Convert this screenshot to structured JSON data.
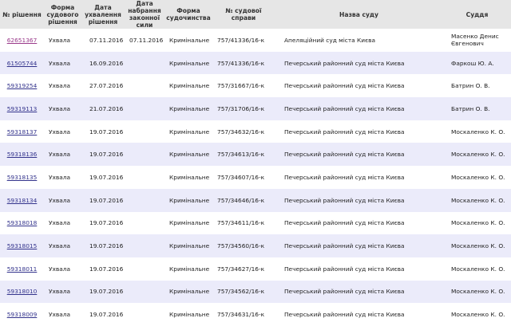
{
  "headers": [
    "№ рішення",
    "Форма судового рішення",
    "Дата ухвалення рішення",
    "Дата набрання законної сили",
    "Форма судочинства",
    "№ судової справи",
    "Назва суду",
    "Суддя"
  ],
  "rows": [
    {
      "id": "62651367",
      "form": "Ухвала",
      "date": "07.11.2016",
      "effective": "07.11.2016",
      "proc": "Кримінальне",
      "case": "757/41336/16-к",
      "court": "Апеляційний суд міста Києва",
      "judge": "Масенко Денис Євгенович",
      "visited": true
    },
    {
      "id": "61505744",
      "form": "Ухвала",
      "date": "16.09.2016",
      "effective": "",
      "proc": "Кримінальне",
      "case": "757/41336/16-к",
      "court": "Печерський районний суд міста Києва",
      "judge": "Фаркош Ю. А."
    },
    {
      "id": "59319254",
      "form": "Ухвала",
      "date": "27.07.2016",
      "effective": "",
      "proc": "Кримінальне",
      "case": "757/31667/16-к",
      "court": "Печерський районний суд міста Києва",
      "judge": "Батрин О. В."
    },
    {
      "id": "59319113",
      "form": "Ухвала",
      "date": "21.07.2016",
      "effective": "",
      "proc": "Кримінальне",
      "case": "757/31706/16-к",
      "court": "Печерський районний суд міста Києва",
      "judge": "Батрин О. В."
    },
    {
      "id": "59318137",
      "form": "Ухвала",
      "date": "19.07.2016",
      "effective": "",
      "proc": "Кримінальне",
      "case": "757/34632/16-к",
      "court": "Печерський районний суд міста Києва",
      "judge": "Москаленко К. О."
    },
    {
      "id": "59318136",
      "form": "Ухвала",
      "date": "19.07.2016",
      "effective": "",
      "proc": "Кримінальне",
      "case": "757/34613/16-к",
      "court": "Печерський районний суд міста Києва",
      "judge": "Москаленко К. О."
    },
    {
      "id": "59318135",
      "form": "Ухвала",
      "date": "19.07.2016",
      "effective": "",
      "proc": "Кримінальне",
      "case": "757/34607/16-к",
      "court": "Печерський районний суд міста Києва",
      "judge": "Москаленко К. О."
    },
    {
      "id": "59318134",
      "form": "Ухвала",
      "date": "19.07.2016",
      "effective": "",
      "proc": "Кримінальне",
      "case": "757/34646/16-к",
      "court": "Печерський районний суд міста Києва",
      "judge": "Москаленко К. О."
    },
    {
      "id": "59318018",
      "form": "Ухвала",
      "date": "19.07.2016",
      "effective": "",
      "proc": "Кримінальне",
      "case": "757/34611/16-к",
      "court": "Печерський районний суд міста Києва",
      "judge": "Москаленко К. О."
    },
    {
      "id": "59318015",
      "form": "Ухвала",
      "date": "19.07.2016",
      "effective": "",
      "proc": "Кримінальне",
      "case": "757/34560/16-к",
      "court": "Печерський районний суд міста Києва",
      "judge": "Москаленко К. О."
    },
    {
      "id": "59318011",
      "form": "Ухвала",
      "date": "19.07.2016",
      "effective": "",
      "proc": "Кримінальне",
      "case": "757/34627/16-к",
      "court": "Печерський районний суд міста Києва",
      "judge": "Москаленко К. О."
    },
    {
      "id": "59318010",
      "form": "Ухвала",
      "date": "19.07.2016",
      "effective": "",
      "proc": "Кримінальне",
      "case": "757/34562/16-к",
      "court": "Печерський районний суд міста Києва",
      "judge": "Москаленко К. О."
    },
    {
      "id": "59318009",
      "form": "Ухвала",
      "date": "19.07.2016",
      "effective": "",
      "proc": "Кримінальне",
      "case": "757/34631/16-к",
      "court": "Печерський районний суд міста Києва",
      "judge": "Москаленко К. О."
    }
  ]
}
